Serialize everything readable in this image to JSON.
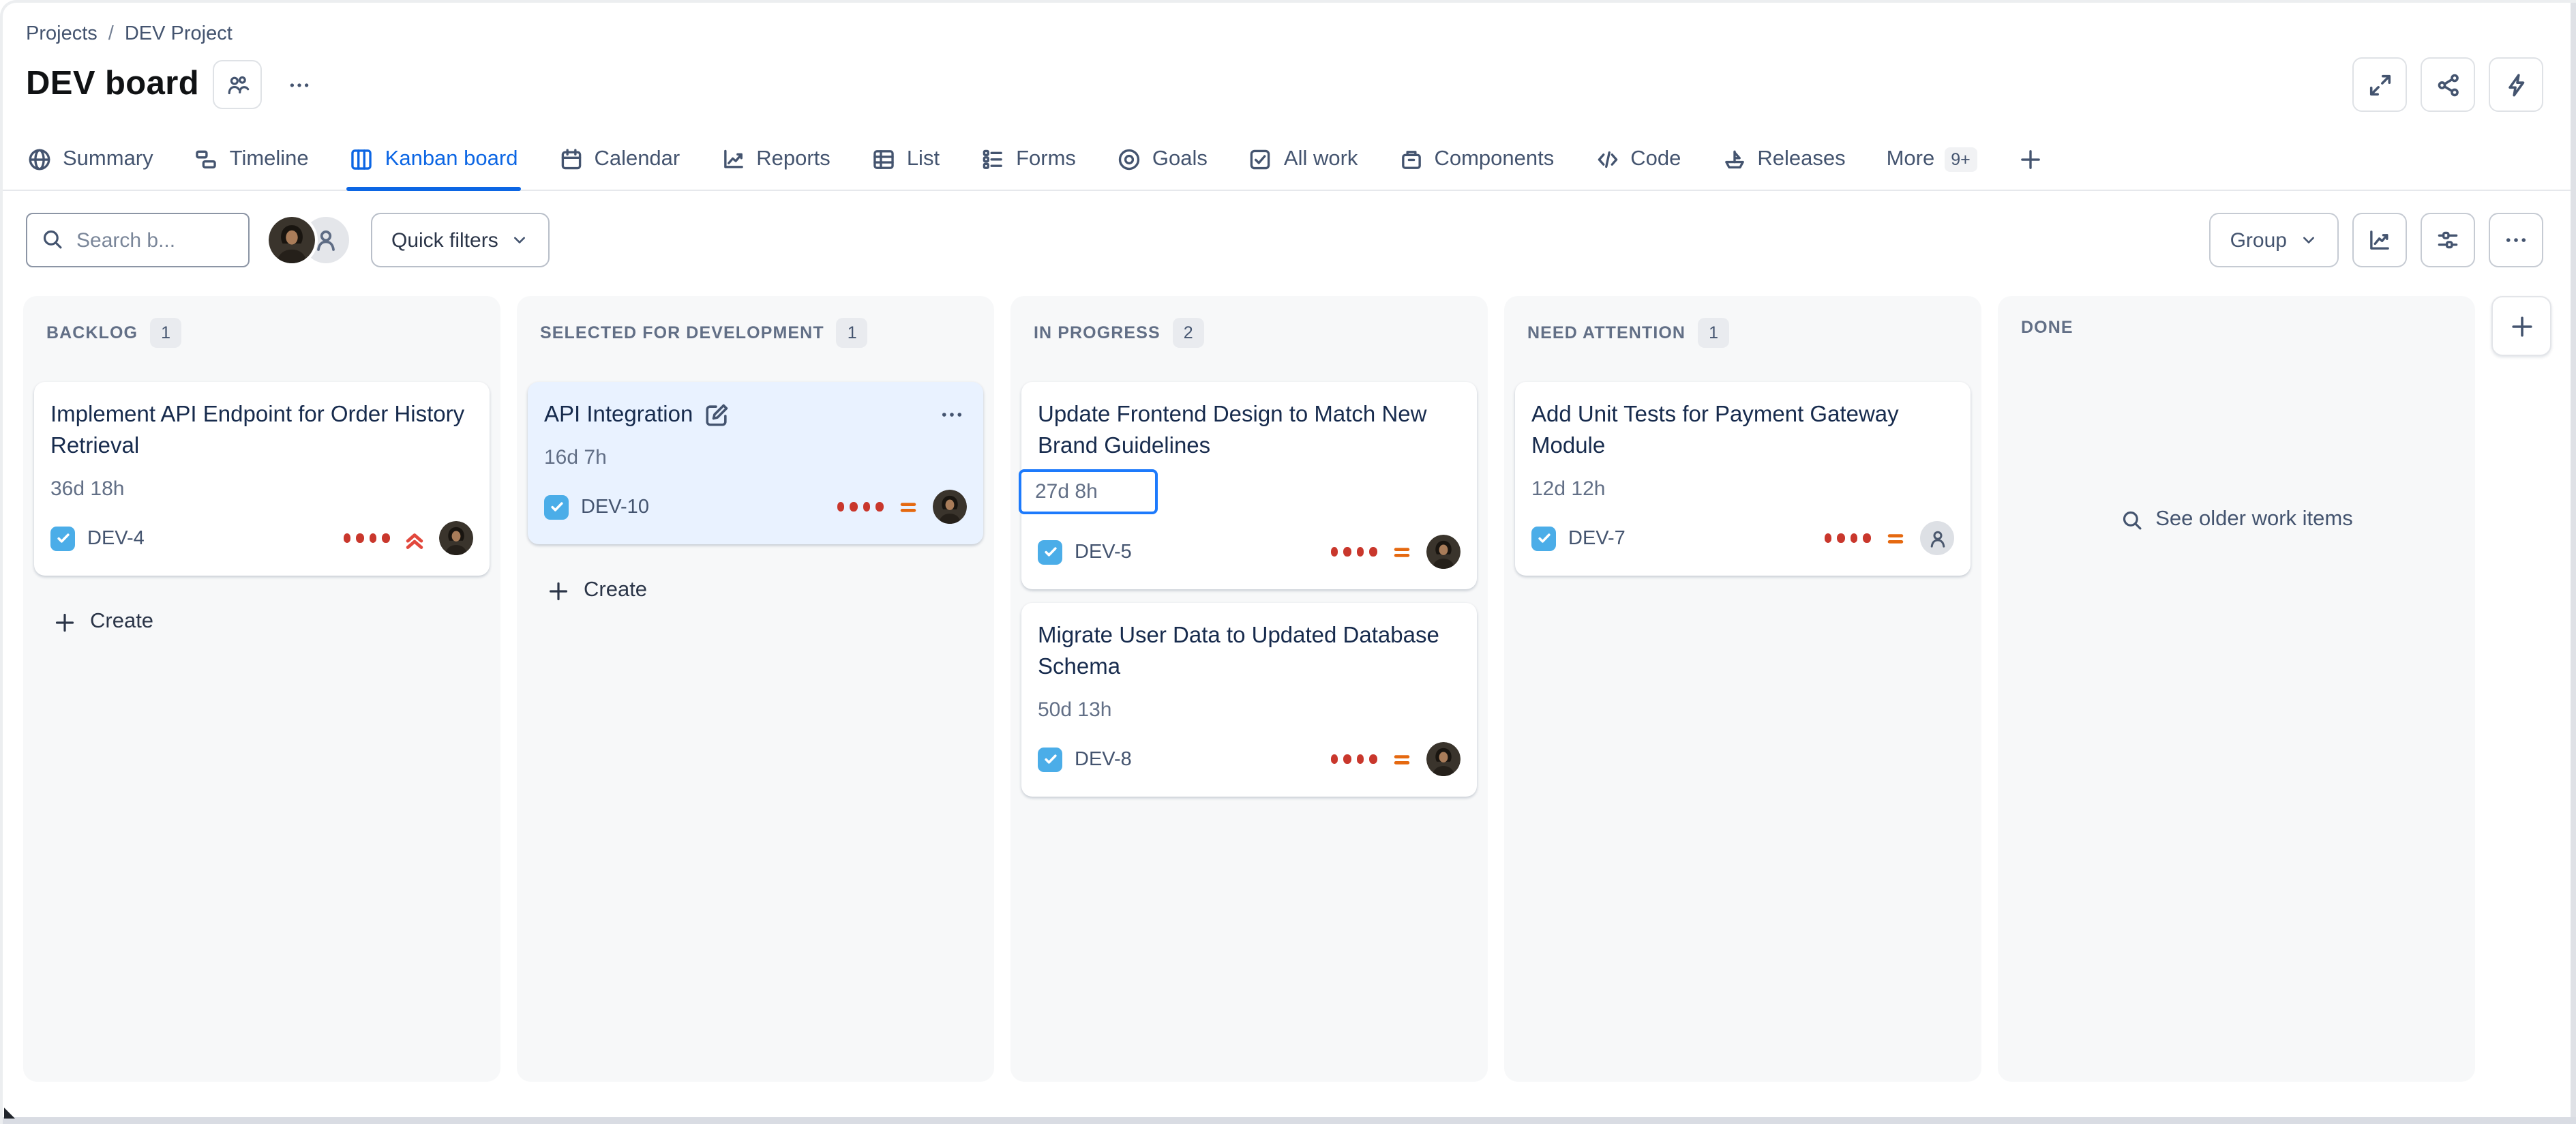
{
  "app": {
    "breadcrumb": {
      "items": [
        "Projects",
        "DEV Project"
      ],
      "separator": "/"
    },
    "title": "DEV board"
  },
  "tabs": {
    "items": [
      {
        "id": "summary",
        "label": "Summary",
        "icon": "globe-icon",
        "active": false
      },
      {
        "id": "timeline",
        "label": "Timeline",
        "icon": "timeline-icon",
        "active": false
      },
      {
        "id": "kanban-board",
        "label": "Kanban board",
        "icon": "board-icon",
        "active": true
      },
      {
        "id": "calendar",
        "label": "Calendar",
        "icon": "calendar-icon",
        "active": false
      },
      {
        "id": "reports",
        "label": "Reports",
        "icon": "reports-icon",
        "active": false
      },
      {
        "id": "list",
        "label": "List",
        "icon": "list-icon",
        "active": false
      },
      {
        "id": "forms",
        "label": "Forms",
        "icon": "forms-icon",
        "active": false
      },
      {
        "id": "goals",
        "label": "Goals",
        "icon": "goals-icon",
        "active": false
      },
      {
        "id": "all-work",
        "label": "All work",
        "icon": "all-work-icon",
        "active": false
      },
      {
        "id": "components",
        "label": "Components",
        "icon": "components-icon",
        "active": false
      },
      {
        "id": "code",
        "label": "Code",
        "icon": "code-icon",
        "active": false
      },
      {
        "id": "releases",
        "label": "Releases",
        "icon": "releases-icon",
        "active": false
      }
    ],
    "more": {
      "label": "More",
      "badge": "9+"
    }
  },
  "toolbar": {
    "search_placeholder": "Search b...",
    "quick_filters_label": "Quick filters",
    "group_label": "Group"
  },
  "board": {
    "columns": [
      {
        "name": "BACKLOG",
        "count": "1",
        "create_label": "Create",
        "cards": [
          {
            "title": "Implement API Endpoint for Order History Retrieval",
            "estimate": "36d 18h",
            "key": "DEV-4",
            "dots": 4,
            "priority": "highest",
            "assignee": "photo"
          }
        ]
      },
      {
        "name": "SELECTED FOR DEVELOPMENT",
        "count": "1",
        "create_label": "Create",
        "cards": [
          {
            "title": "API Integration",
            "editing": true,
            "selected": true,
            "menu": true,
            "estimate": "16d 7h",
            "key": "DEV-10",
            "dots": 4,
            "priority": "medium",
            "assignee": "photo"
          }
        ]
      },
      {
        "name": "IN PROGRESS",
        "count": "2",
        "cards": [
          {
            "title": "Update Frontend Design to Match New Brand Guidelines",
            "estimate": "27d 8h",
            "estimate_focused": true,
            "key": "DEV-5",
            "dots": 4,
            "priority": "medium",
            "assignee": "photo"
          },
          {
            "title": "Migrate User Data to Updated Database Schema",
            "estimate": "50d 13h",
            "key": "DEV-8",
            "dots": 4,
            "priority": "medium",
            "assignee": "photo"
          }
        ]
      },
      {
        "name": "NEED ATTENTION",
        "count": "1",
        "cards": [
          {
            "title": "Add Unit Tests for Payment Gateway Module",
            "estimate": "12d 12h",
            "key": "DEV-7",
            "dots": 4,
            "priority": "medium",
            "assignee": "unassigned"
          }
        ]
      },
      {
        "name": "DONE",
        "count": null,
        "cards": [],
        "empty_link": "See older work items"
      }
    ]
  },
  "colors": {
    "accent": "#0C66E4",
    "task_icon_blue": "#4BADE8",
    "priority_highest_red": "#E2483D",
    "priority_medium_orange": "#E56910",
    "dot_red": "#C9372C",
    "selected_card_bg": "#E9F2FF",
    "focus_border_blue": "#1D7AFC",
    "column_bg": "#F7F8F9"
  }
}
